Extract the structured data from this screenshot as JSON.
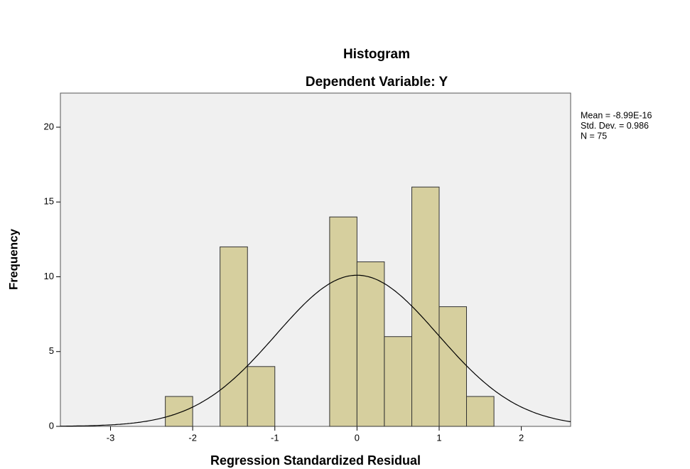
{
  "chart_data": {
    "type": "histogram",
    "title": "Histogram",
    "subtitle": "Dependent Variable: Y",
    "x_label": "Regression Standardized Residual",
    "y_label": "Frequency",
    "bins": [
      -2.333,
      -2,
      -1.667,
      -1.333,
      -1,
      -0.667,
      -0.333,
      0,
      0.333,
      0.667,
      1,
      1.333,
      1.667
    ],
    "values": [
      2,
      0,
      12,
      4,
      0,
      0,
      14,
      11,
      6,
      16,
      8,
      2
    ],
    "color": "#d6cf9e",
    "xlim": [
      -3.61,
      2.6
    ],
    "ylim": [
      0,
      22.28
    ],
    "xticks": [
      -3,
      -2,
      -1,
      0,
      1,
      2
    ],
    "yticks": [
      0,
      5,
      10,
      15,
      20
    ],
    "normal_curve": {
      "mean": -8.99e-16,
      "std_dev": 0.986,
      "n": 75
    },
    "annotations": [
      "Mean = -8.99E-16",
      "Std. Dev. = 0.986",
      "N = 75"
    ]
  }
}
